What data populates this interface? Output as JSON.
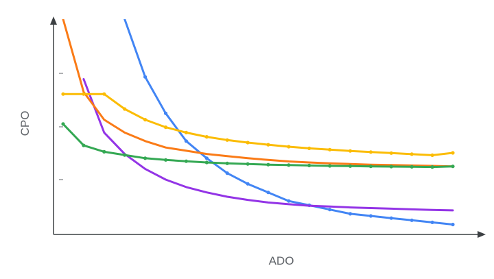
{
  "chart_data": {
    "type": "line",
    "title": "",
    "xlabel": "ADO",
    "ylabel": "CPO",
    "xlim": [
      0,
      19
    ],
    "ylim": [
      0,
      100
    ],
    "grid": false,
    "legend": "none",
    "x": [
      0,
      1,
      2,
      3,
      4,
      5,
      6,
      7,
      8,
      9,
      10,
      11,
      12,
      13,
      14,
      15,
      16,
      17,
      18,
      19
    ],
    "series": [
      {
        "color": "#4285f4",
        "marker": "dot",
        "values": [
          null,
          null,
          null,
          100,
          73,
          56,
          43,
          35,
          28,
          23,
          19,
          15,
          13,
          11,
          9,
          8,
          7,
          6,
          5,
          4
        ]
      },
      {
        "color": "#9334e6",
        "marker": "none",
        "values": [
          null,
          72,
          47,
          37,
          30,
          25,
          21.5,
          19,
          17,
          15.5,
          14.3,
          13.5,
          12.8,
          12.4,
          12,
          11.7,
          11.4,
          11.1,
          10.8,
          10.6
        ]
      },
      {
        "color": "#fa7b17",
        "marker": "none",
        "values": [
          100,
          66,
          53,
          47,
          43,
          40,
          38.5,
          37,
          36,
          35,
          34.2,
          33.5,
          33,
          32.6,
          32.3,
          32,
          31.8,
          31.6,
          31.4,
          31.2
        ]
      },
      {
        "color": "#fbbc04",
        "marker": "dot",
        "values": [
          65,
          65,
          65,
          58,
          53,
          49.5,
          47,
          45,
          43.5,
          42.3,
          41.3,
          40.4,
          39.6,
          39,
          38.4,
          37.9,
          37.4,
          36.9,
          36.4,
          37.5
        ]
      },
      {
        "color": "#34a853",
        "marker": "dot",
        "values": [
          51,
          41,
          38,
          36.5,
          35,
          34.2,
          33.6,
          33,
          32.6,
          32.3,
          32,
          31.8,
          31.6,
          31.4,
          31.3,
          31.2,
          31.1,
          31,
          30.9,
          31.2
        ]
      }
    ]
  }
}
